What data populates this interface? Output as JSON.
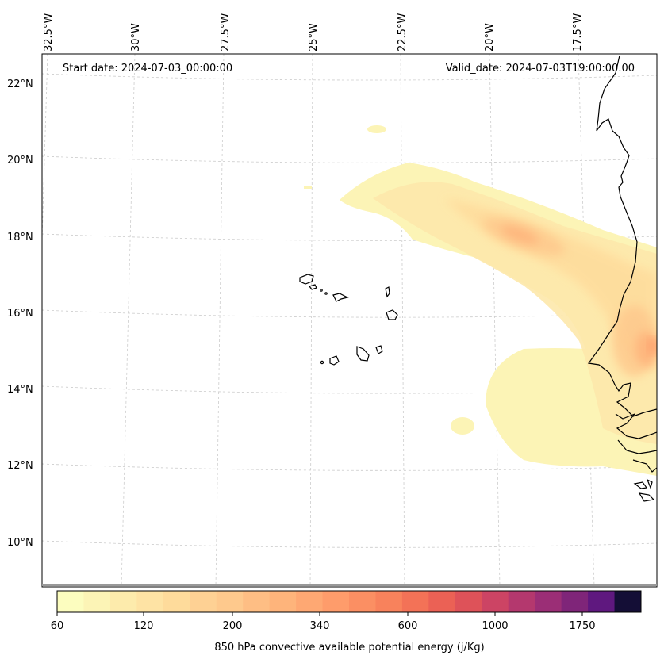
{
  "map": {
    "start_date": "Start date: 2024-07-03_00:00:00",
    "valid_date": "Valid_date: 2024-07-03T19:00:00.00",
    "lon_labels": [
      "32.5°W",
      "30°W",
      "27.5°W",
      "25°W",
      "22.5°W",
      "20°W",
      "17.5°W"
    ],
    "lat_labels": [
      "22°N",
      "20°N",
      "18°N",
      "16°N",
      "14°N",
      "12°N",
      "10°N"
    ],
    "gridlines": "dashed",
    "islands": "Cape Verde",
    "coastline": "West Africa"
  },
  "colorbar": {
    "title": "850 hPa convective available potential energy (j/Kg)",
    "tick_labels": [
      "60",
      "120",
      "200",
      "340",
      "600",
      "1000",
      "1750"
    ],
    "levels": [
      60,
      80,
      100,
      120,
      140,
      160,
      200,
      250,
      300,
      340,
      400,
      450,
      500,
      600,
      700,
      800,
      1000,
      1200,
      1500,
      1750,
      2000,
      2500
    ],
    "colors": [
      "#fcfdbf",
      "#fcf4b6",
      "#fdebac",
      "#fee3a4",
      "#fedb9b",
      "#fed194",
      "#fec98d",
      "#febe84",
      "#feb47b",
      "#fea873",
      "#fe9c6b",
      "#fb8f63",
      "#f8825c",
      "#f37257",
      "#eb6155",
      "#de5259",
      "#cc4464",
      "#b4386e",
      "#9b2e76",
      "#7f2579",
      "#5f187f",
      "#140e36"
    ]
  }
}
